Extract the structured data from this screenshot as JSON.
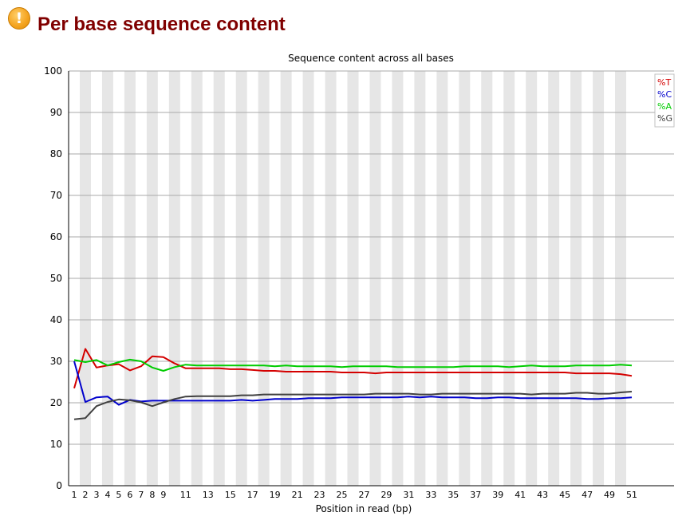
{
  "header": {
    "icon": "warning-icon",
    "icon_glyph": "!",
    "title": "Per base sequence content"
  },
  "chart_data": {
    "type": "line",
    "title": "Sequence content across all bases",
    "xlabel": "Position in read (bp)",
    "ylabel": "",
    "ylim": [
      0,
      100
    ],
    "yticks": [
      0,
      10,
      20,
      30,
      40,
      50,
      60,
      70,
      80,
      90,
      100
    ],
    "categories": [
      "1",
      "2",
      "3",
      "4",
      "5",
      "6",
      "7",
      "8",
      "9",
      "10",
      "11",
      "12",
      "13",
      "14",
      "15",
      "16",
      "17",
      "18",
      "19",
      "20",
      "21",
      "22",
      "23",
      "24",
      "25",
      "26",
      "27",
      "28",
      "29",
      "30",
      "31",
      "32",
      "33",
      "34",
      "35",
      "36",
      "37",
      "38",
      "39",
      "40",
      "41",
      "42",
      "43",
      "44",
      "45",
      "46",
      "47",
      "48",
      "49",
      "50",
      "51"
    ],
    "xtick_labels": [
      "1",
      "2",
      "3",
      "4",
      "5",
      "6",
      "7",
      "8",
      "9",
      "11",
      "13",
      "15",
      "17",
      "19",
      "21",
      "23",
      "25",
      "27",
      "29",
      "31",
      "33",
      "35",
      "37",
      "39",
      "41",
      "43",
      "45",
      "47",
      "49",
      "51"
    ],
    "grid": true,
    "legend_position": "top-right",
    "series": [
      {
        "name": "%T",
        "color": "#d40000",
        "values": [
          23.5,
          33.0,
          28.5,
          29.0,
          29.3,
          27.8,
          28.8,
          31.2,
          31.0,
          29.5,
          28.3,
          28.3,
          28.3,
          28.3,
          28.1,
          28.1,
          27.9,
          27.7,
          27.7,
          27.5,
          27.5,
          27.5,
          27.5,
          27.5,
          27.3,
          27.3,
          27.3,
          27.1,
          27.3,
          27.3,
          27.3,
          27.3,
          27.3,
          27.3,
          27.3,
          27.3,
          27.3,
          27.3,
          27.3,
          27.3,
          27.3,
          27.3,
          27.3,
          27.3,
          27.3,
          27.1,
          27.1,
          27.1,
          27.1,
          26.9,
          26.5
        ]
      },
      {
        "name": "%C",
        "color": "#0000cc",
        "values": [
          30.0,
          20.2,
          21.3,
          21.5,
          19.5,
          20.7,
          20.3,
          20.5,
          20.5,
          20.5,
          20.5,
          20.5,
          20.5,
          20.5,
          20.5,
          20.7,
          20.5,
          20.7,
          20.9,
          20.9,
          20.9,
          21.1,
          21.1,
          21.1,
          21.3,
          21.3,
          21.3,
          21.3,
          21.3,
          21.3,
          21.5,
          21.3,
          21.5,
          21.3,
          21.3,
          21.3,
          21.1,
          21.1,
          21.3,
          21.3,
          21.1,
          21.1,
          21.1,
          21.1,
          21.1,
          21.1,
          20.9,
          20.9,
          21.1,
          21.1,
          21.3
        ]
      },
      {
        "name": "%A",
        "color": "#00cc00",
        "values": [
          30.3,
          29.8,
          30.3,
          29.0,
          29.8,
          30.4,
          30.0,
          28.5,
          27.7,
          28.6,
          29.2,
          29.0,
          29.0,
          29.0,
          29.0,
          29.0,
          29.0,
          29.0,
          28.8,
          29.0,
          28.8,
          28.8,
          28.8,
          28.8,
          28.6,
          28.8,
          28.8,
          28.8,
          28.8,
          28.6,
          28.6,
          28.6,
          28.6,
          28.6,
          28.6,
          28.8,
          28.8,
          28.8,
          28.8,
          28.6,
          28.8,
          29.0,
          28.8,
          28.8,
          28.8,
          29.0,
          29.0,
          29.0,
          29.0,
          29.2,
          29.0
        ]
      },
      {
        "name": "%G",
        "color": "#404040",
        "values": [
          16.0,
          16.3,
          19.2,
          20.2,
          20.8,
          20.6,
          20.1,
          19.2,
          20.1,
          20.9,
          21.5,
          21.6,
          21.6,
          21.6,
          21.6,
          21.8,
          21.8,
          22.0,
          22.0,
          22.0,
          22.0,
          22.0,
          22.0,
          22.0,
          22.0,
          22.0,
          22.0,
          22.2,
          22.2,
          22.2,
          22.2,
          22.0,
          22.0,
          22.2,
          22.2,
          22.2,
          22.2,
          22.2,
          22.2,
          22.2,
          22.2,
          22.0,
          22.2,
          22.2,
          22.2,
          22.4,
          22.4,
          22.2,
          22.2,
          22.5,
          22.7
        ]
      }
    ]
  }
}
